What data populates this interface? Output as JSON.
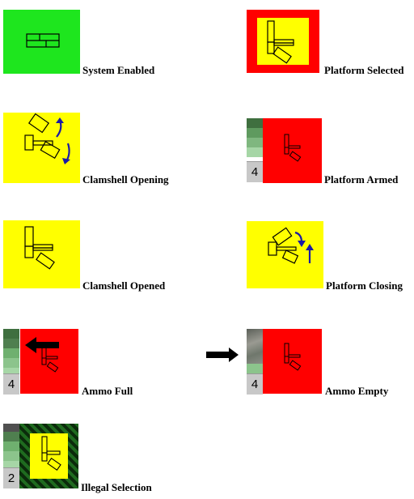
{
  "states": {
    "system_enabled": {
      "label": "System Enabled"
    },
    "platform_selected": {
      "label": "Platform Selected"
    },
    "clamshell_opening": {
      "label": "Clamshell Opening"
    },
    "platform_armed": {
      "label": "Platform Armed",
      "ammo_count": "4"
    },
    "clamshell_opened": {
      "label": "Clamshell Opened"
    },
    "platform_closing": {
      "label": "Platform Closing"
    },
    "ammo_full": {
      "label": "Ammo Full",
      "ammo_count": "4"
    },
    "ammo_empty": {
      "label": "Ammo Empty",
      "ammo_count": "4"
    },
    "illegal_selection": {
      "label": "Illegal Selection",
      "ammo_count": "2"
    }
  },
  "colors": {
    "green_bg": "#1ee61e",
    "yellow_bg": "#ffff00",
    "red_bg": "#ff0000",
    "arrow_blue": "#1a1aa6",
    "count_gray": "#c8c8c8",
    "hatch_green": "#1f6b1f",
    "ammo_shades": [
      "#4f7f4f",
      "#5f9a5f",
      "#6fb06f",
      "#8cc48c",
      "#a6d6a6"
    ]
  },
  "icons": {
    "platform": "platform-icon",
    "rotate_arrows": "rotate-arrows-icon",
    "transition_arrow": "right-arrow-icon",
    "ammo_direction_arrow": "left-arrow-icon"
  }
}
